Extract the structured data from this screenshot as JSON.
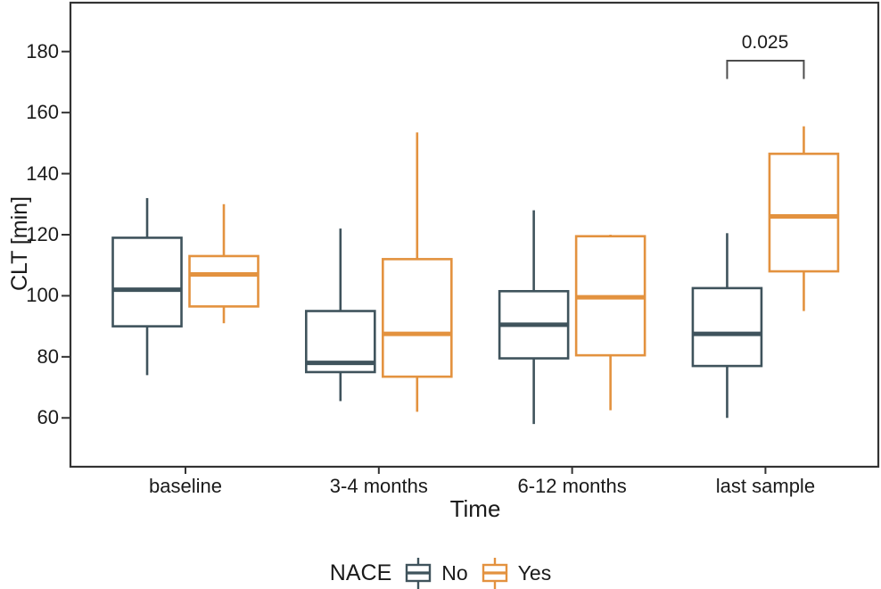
{
  "chart_data": {
    "type": "boxplot",
    "xlabel": "Time",
    "ylabel": "CLT [min]",
    "categories": [
      "baseline",
      "3-4 months",
      "6-12 months",
      "last sample"
    ],
    "yticks": [
      60,
      80,
      100,
      120,
      140,
      160,
      180
    ],
    "ylim": [
      44,
      196
    ],
    "grid": false,
    "panel_border_color": "#333333",
    "tick_color": "#333333",
    "legend": {
      "title": "NACE",
      "position": "bottom",
      "entries": [
        {
          "label": "No",
          "color": "#3f535c"
        },
        {
          "label": "Yes",
          "color": "#e3923f"
        }
      ]
    },
    "series": [
      {
        "name": "No",
        "color": "#3f535c",
        "boxes": [
          {
            "category": "baseline",
            "min": 74,
            "q1": 90,
            "median": 102,
            "q3": 119,
            "max": 132
          },
          {
            "category": "3-4 months",
            "min": 65.5,
            "q1": 75,
            "median": 78,
            "q3": 95,
            "max": 122
          },
          {
            "category": "6-12 months",
            "min": 58,
            "q1": 79.5,
            "median": 90.5,
            "q3": 101.5,
            "max": 128
          },
          {
            "category": "last sample",
            "min": 60,
            "q1": 77,
            "median": 87.5,
            "q3": 102.5,
            "max": 120.5
          }
        ]
      },
      {
        "name": "Yes",
        "color": "#e3923f",
        "boxes": [
          {
            "category": "baseline",
            "min": 91,
            "q1": 96.5,
            "median": 107,
            "q3": 113,
            "max": 130
          },
          {
            "category": "3-4 months",
            "min": 62,
            "q1": 73.5,
            "median": 87.5,
            "q3": 112,
            "max": 153.5
          },
          {
            "category": "6-12 months",
            "min": 62.5,
            "q1": 80.5,
            "median": 99.5,
            "q3": 119.5,
            "max": 120
          },
          {
            "category": "last sample",
            "min": 95,
            "q1": 108,
            "median": 126,
            "q3": 146.5,
            "max": 155.5
          }
        ]
      }
    ],
    "annotation": {
      "label": "0.025",
      "category": "last sample",
      "between": [
        "No",
        "Yes"
      ],
      "y_top": 177,
      "y_bottom": 171,
      "color": "#4d4d4d"
    }
  }
}
